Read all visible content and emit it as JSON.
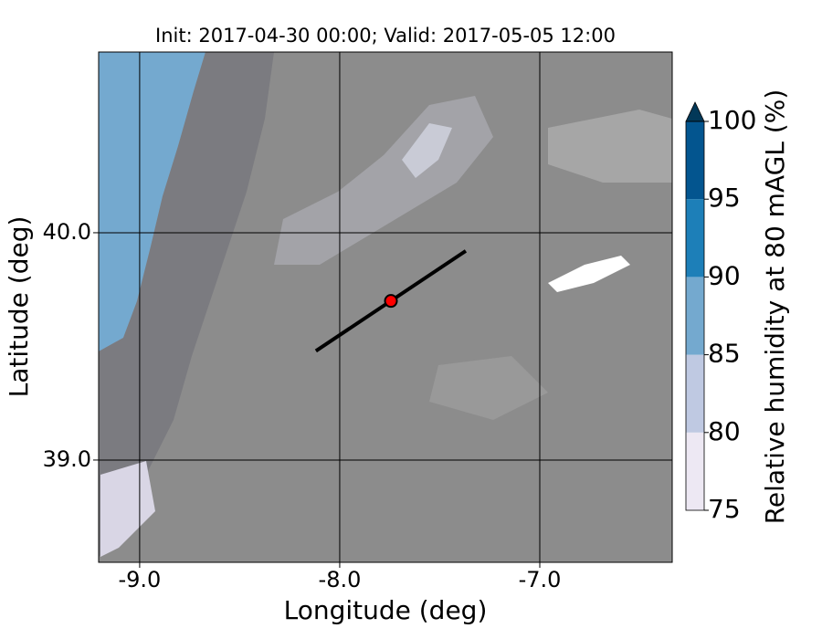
{
  "chart_data": {
    "type": "map",
    "title": "Init: 2017-04-30 00:00; Valid: 2017-05-05 12:00",
    "x_label": "Longitude (deg)",
    "y_label": "Latitude (deg)",
    "xlim": [
      -9.205,
      -6.338
    ],
    "ylim": [
      38.55,
      40.795
    ],
    "xticks": [
      {
        "value": -9,
        "label": "-9.0"
      },
      {
        "value": -8,
        "label": "-8.0"
      },
      {
        "value": -7,
        "label": "-7.0"
      }
    ],
    "yticks": [
      {
        "value": 39,
        "label": "39.0"
      },
      {
        "value": 40,
        "label": "40.0"
      }
    ],
    "grid": true,
    "point": {
      "x": -7.744,
      "y": 39.7,
      "color": "#ff0000"
    },
    "line": {
      "x": [
        -8.119,
        -7.37
      ],
      "y": [
        39.48,
        39.92
      ],
      "color": "#000000"
    },
    "colorbar": {
      "label": "Relative humidity at 80 mAGL (%)",
      "lim": [
        75,
        100
      ],
      "ticks": [
        75,
        80,
        85,
        90,
        95,
        100
      ],
      "colors": [
        "#ede8f3",
        "#bfc9e2",
        "#74a9cf",
        "#1d7fb8",
        "#03558f"
      ],
      "extend_color": "#023858"
    }
  }
}
